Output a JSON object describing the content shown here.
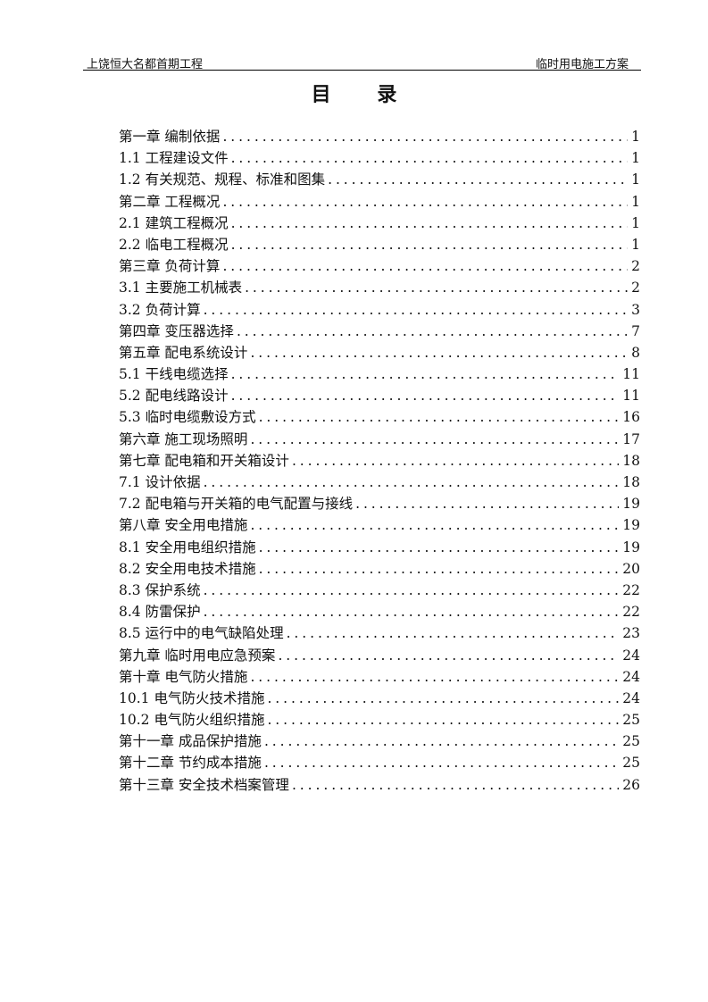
{
  "header": {
    "left": "上饶恒大名都首期工程",
    "right": "临时用电施工方案"
  },
  "title": "目 录",
  "toc": [
    {
      "text": "第一章 编制依据",
      "page": "1"
    },
    {
      "text": "1.1 工程建设文件",
      "page": "1"
    },
    {
      "text": "1.2 有关规范、规程、标准和图集",
      "page": "1"
    },
    {
      "text": "第二章 工程概况",
      "page": "1"
    },
    {
      "text": "2.1 建筑工程概况",
      "page": "1"
    },
    {
      "text": "2.2 临电工程概况",
      "page": "1"
    },
    {
      "text": "第三章 负荷计算",
      "page": "2"
    },
    {
      "text": "3.1 主要施工机械表",
      "page": "2"
    },
    {
      "text": "3.2 负荷计算",
      "page": "3"
    },
    {
      "text": "第四章 变压器选择",
      "page": "7"
    },
    {
      "text": "第五章 配电系统设计",
      "page": "8"
    },
    {
      "text": "5.1 干线电缆选择",
      "page": "11"
    },
    {
      "text": "5.2 配电线路设计",
      "page": "11"
    },
    {
      "text": "5.3 临时电缆敷设方式",
      "page": "16"
    },
    {
      "text": "第六章 施工现场照明",
      "page": "17"
    },
    {
      "text": "第七章 配电箱和开关箱设计",
      "page": "18"
    },
    {
      "text": "7.1 设计依据",
      "page": "18"
    },
    {
      "text": "7.2 配电箱与开关箱的电气配置与接线",
      "page": "19"
    },
    {
      "text": "第八章 安全用电措施",
      "page": "19"
    },
    {
      "text": "8.1 安全用电组织措施",
      "page": "19"
    },
    {
      "text": "8.2 安全用电技术措施",
      "page": "20"
    },
    {
      "text": "8.3 保护系统",
      "page": "22"
    },
    {
      "text": "8.4 防雷保护",
      "page": "22"
    },
    {
      "text": "8.5 运行中的电气缺陷处理",
      "page": "23"
    },
    {
      "text": "第九章 临时用电应急预案",
      "page": "24"
    },
    {
      "text": "第十章 电气防火措施",
      "page": "24"
    },
    {
      "text": "10.1 电气防火技术措施",
      "page": "24"
    },
    {
      "text": "10.2 电气防火组织措施",
      "page": "25"
    },
    {
      "text": "第十一章 成品保护措施",
      "page": "25"
    },
    {
      "text": "第十二章 节约成本措施",
      "page": "25"
    },
    {
      "text": "第十三章 安全技术档案管理",
      "page": "26"
    }
  ]
}
